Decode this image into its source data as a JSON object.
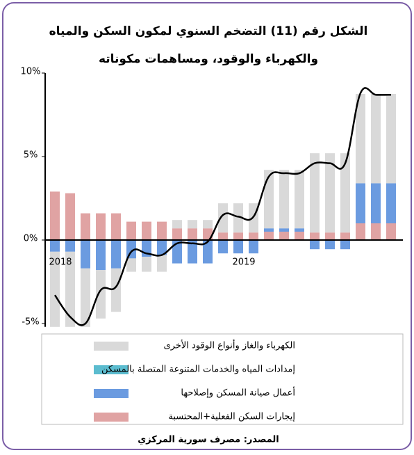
{
  "chart_data": {
    "type": "bar",
    "title": "الشكل رقم (11) التضخم السنوي لمكون السكن والمياه",
    "subtitle": "والكهرباء والوقود، ومساهمات مكوناته",
    "source": "المصدر: مصرف سورية المركزي",
    "categories": [
      "2018",
      null,
      null,
      null,
      null,
      null,
      null,
      null,
      null,
      null,
      null,
      null,
      "2019",
      null,
      null,
      null,
      null,
      null,
      null,
      null,
      null,
      null,
      null
    ],
    "series": [
      {
        "name": "إيجارات السكن الفعلية+المحتسبة",
        "color": "#e0a3a3",
        "values": [
          2.9,
          2.8,
          1.6,
          1.6,
          1.6,
          1.1,
          1.1,
          1.1,
          0.7,
          0.7,
          0.7,
          0.45,
          0.45,
          0.45,
          0.5,
          0.5,
          0.5,
          0.45,
          0.45,
          0.45,
          1.0,
          1.0,
          1.0
        ]
      },
      {
        "name": "أعمال صيانة المسكن وإصلاحها",
        "color": "#6b9be0",
        "values": [
          -0.7,
          -0.7,
          -1.7,
          -1.8,
          -1.7,
          -1.1,
          -1.0,
          -0.9,
          -1.4,
          -1.4,
          -1.4,
          -0.8,
          -0.8,
          -0.8,
          0.2,
          0.2,
          0.2,
          -0.55,
          -0.55,
          -0.55,
          2.4,
          2.4,
          2.4
        ]
      },
      {
        "name": "إمدادات المياه والخدمات المتنوعة المتصلة بالمسكن",
        "color": "#5bbccf",
        "values": [
          0,
          0,
          0,
          0,
          0,
          0,
          0,
          0,
          0,
          0,
          0,
          0,
          0,
          0,
          0,
          0,
          0,
          0,
          0,
          0,
          0,
          0,
          0
        ]
      },
      {
        "name": "الكهرباء والغاز وأنواع الوقود الأخرى",
        "color": "#d9d9d9",
        "values": [
          -4.5,
          -4.5,
          -3.5,
          -2.9,
          -2.6,
          -0.8,
          -0.9,
          -1.0,
          0.5,
          0.5,
          0.5,
          1.75,
          1.75,
          1.75,
          3.5,
          3.5,
          3.5,
          4.75,
          4.75,
          4.75,
          5.35,
          5.35,
          5.35
        ]
      }
    ],
    "line": {
      "color": "#000000",
      "values": [
        -3.3,
        -4.6,
        -5.0,
        -3.0,
        -2.8,
        -0.7,
        -0.8,
        -0.9,
        -0.2,
        -0.2,
        -0.1,
        1.5,
        1.4,
        1.4,
        3.8,
        4.0,
        4.0,
        4.6,
        4.6,
        4.6,
        8.8,
        8.7,
        8.7
      ]
    },
    "ylim": [
      -5.2,
      10
    ],
    "yticks": [
      {
        "value": 10,
        "label": "10%"
      },
      {
        "value": 5,
        "label": "5%"
      },
      {
        "value": 0,
        "label": "0%"
      },
      {
        "value": -5,
        "label": "-5%"
      }
    ]
  }
}
